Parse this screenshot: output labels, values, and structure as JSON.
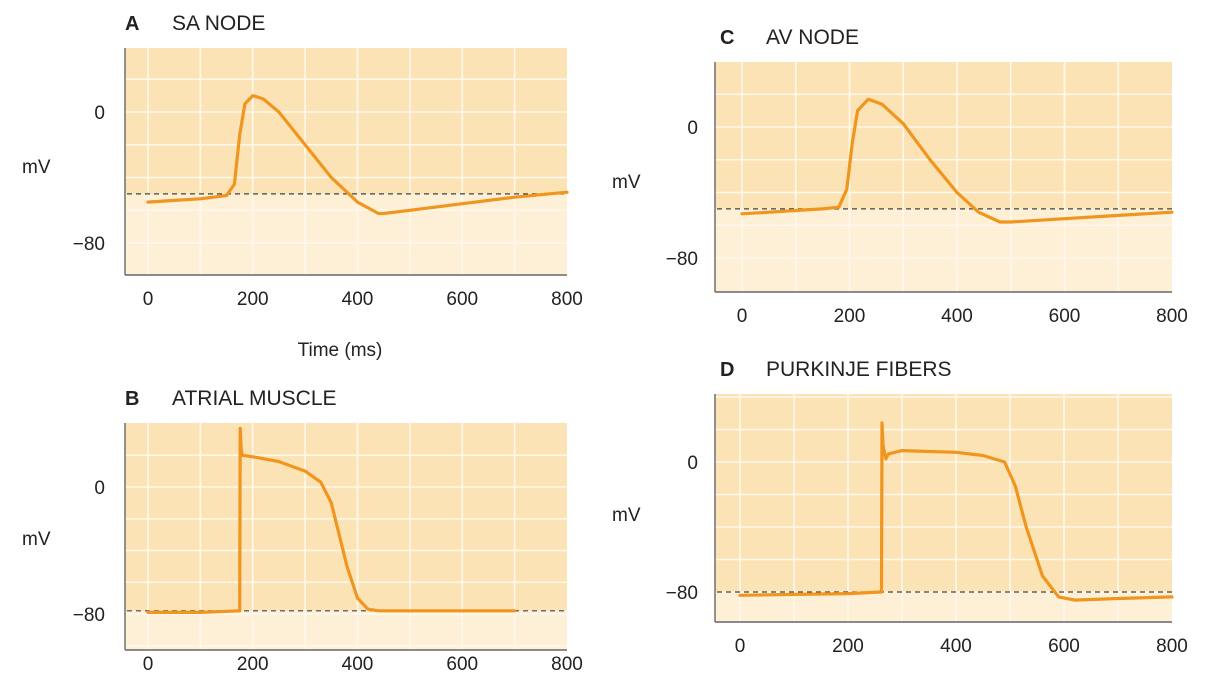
{
  "colors": {
    "bg_upper": "#fce3b6",
    "bg_lower": "#fdf0d6",
    "grid": "#fff8ec",
    "trace": "#f0951e",
    "axis": "#666666",
    "threshold": "#444444"
  },
  "chart_data": [
    {
      "type": "line",
      "letter": "A",
      "title": "SA NODE",
      "ylabel": "mV",
      "xlabel": "Time (ms)",
      "xlim": [
        0,
        800
      ],
      "xticks": [
        "0",
        "200",
        "400",
        "600",
        "800"
      ],
      "yticks": [
        "0",
        "−80"
      ],
      "ytick_values": [
        0,
        -80
      ],
      "threshold": -50,
      "series": [
        {
          "x": [
            0,
            50,
            100,
            150,
            165,
            175,
            185,
            200,
            220,
            250,
            300,
            350,
            400,
            440,
            450,
            500,
            600,
            700,
            800
          ],
          "y": [
            -55,
            -54,
            -53,
            -51,
            -44,
            -14,
            5,
            10,
            8,
            0,
            -20,
            -40,
            -55,
            -62,
            -62,
            -60,
            -56,
            -52,
            -49
          ]
        }
      ]
    },
    {
      "type": "line",
      "letter": "B",
      "title": "ATRIAL MUSCLE",
      "ylabel": "mV",
      "xlabel": "",
      "xlim": [
        0,
        800
      ],
      "xticks": [
        "0",
        "200",
        "400",
        "600",
        "800"
      ],
      "yticks": [
        "0",
        "−80"
      ],
      "ytick_values": [
        0,
        -80
      ],
      "threshold": -78,
      "series": [
        {
          "x": [
            0,
            100,
            175,
            176,
            178,
            180,
            200,
            250,
            300,
            330,
            350,
            380,
            400,
            420,
            440,
            500,
            600,
            700
          ],
          "y": [
            -79,
            -79,
            -78,
            37,
            24,
            20,
            19,
            16,
            10,
            3,
            -10,
            -50,
            -70,
            -77,
            -78,
            -78,
            -78,
            -78
          ]
        }
      ]
    },
    {
      "type": "line",
      "letter": "C",
      "title": "AV NODE",
      "ylabel": "mV",
      "xlabel": "",
      "xlim": [
        0,
        800
      ],
      "xticks": [
        "0",
        "200",
        "400",
        "600",
        "800"
      ],
      "yticks": [
        "0",
        "−80"
      ],
      "ytick_values": [
        0,
        -80
      ],
      "threshold": -50,
      "series": [
        {
          "x": [
            0,
            50,
            100,
            150,
            180,
            195,
            205,
            215,
            235,
            260,
            300,
            350,
            400,
            440,
            480,
            500,
            600,
            700,
            800
          ],
          "y": [
            -53,
            -52,
            -51,
            -50,
            -49,
            -38,
            -10,
            10,
            17,
            14,
            2,
            -20,
            -40,
            -52,
            -58,
            -58,
            -56,
            -54,
            -52
          ]
        }
      ]
    },
    {
      "type": "line",
      "letter": "D",
      "title": "PURKINJE FIBERS",
      "ylabel": "mV",
      "xlabel": "",
      "xlim": [
        0,
        800
      ],
      "xticks": [
        "0",
        "200",
        "400",
        "600",
        "800"
      ],
      "yticks": [
        "0",
        "−80"
      ],
      "ytick_values": [
        0,
        -80
      ],
      "threshold": -80,
      "series": [
        {
          "x": [
            0,
            100,
            200,
            262,
            263,
            265,
            270,
            275,
            300,
            400,
            450,
            490,
            510,
            530,
            560,
            590,
            620,
            700,
            800
          ],
          "y": [
            -82,
            -81.5,
            -81,
            -80,
            24,
            10,
            2,
            5,
            7,
            6,
            4,
            0,
            -15,
            -40,
            -70,
            -83,
            -85,
            -84,
            -83
          ]
        }
      ]
    }
  ]
}
